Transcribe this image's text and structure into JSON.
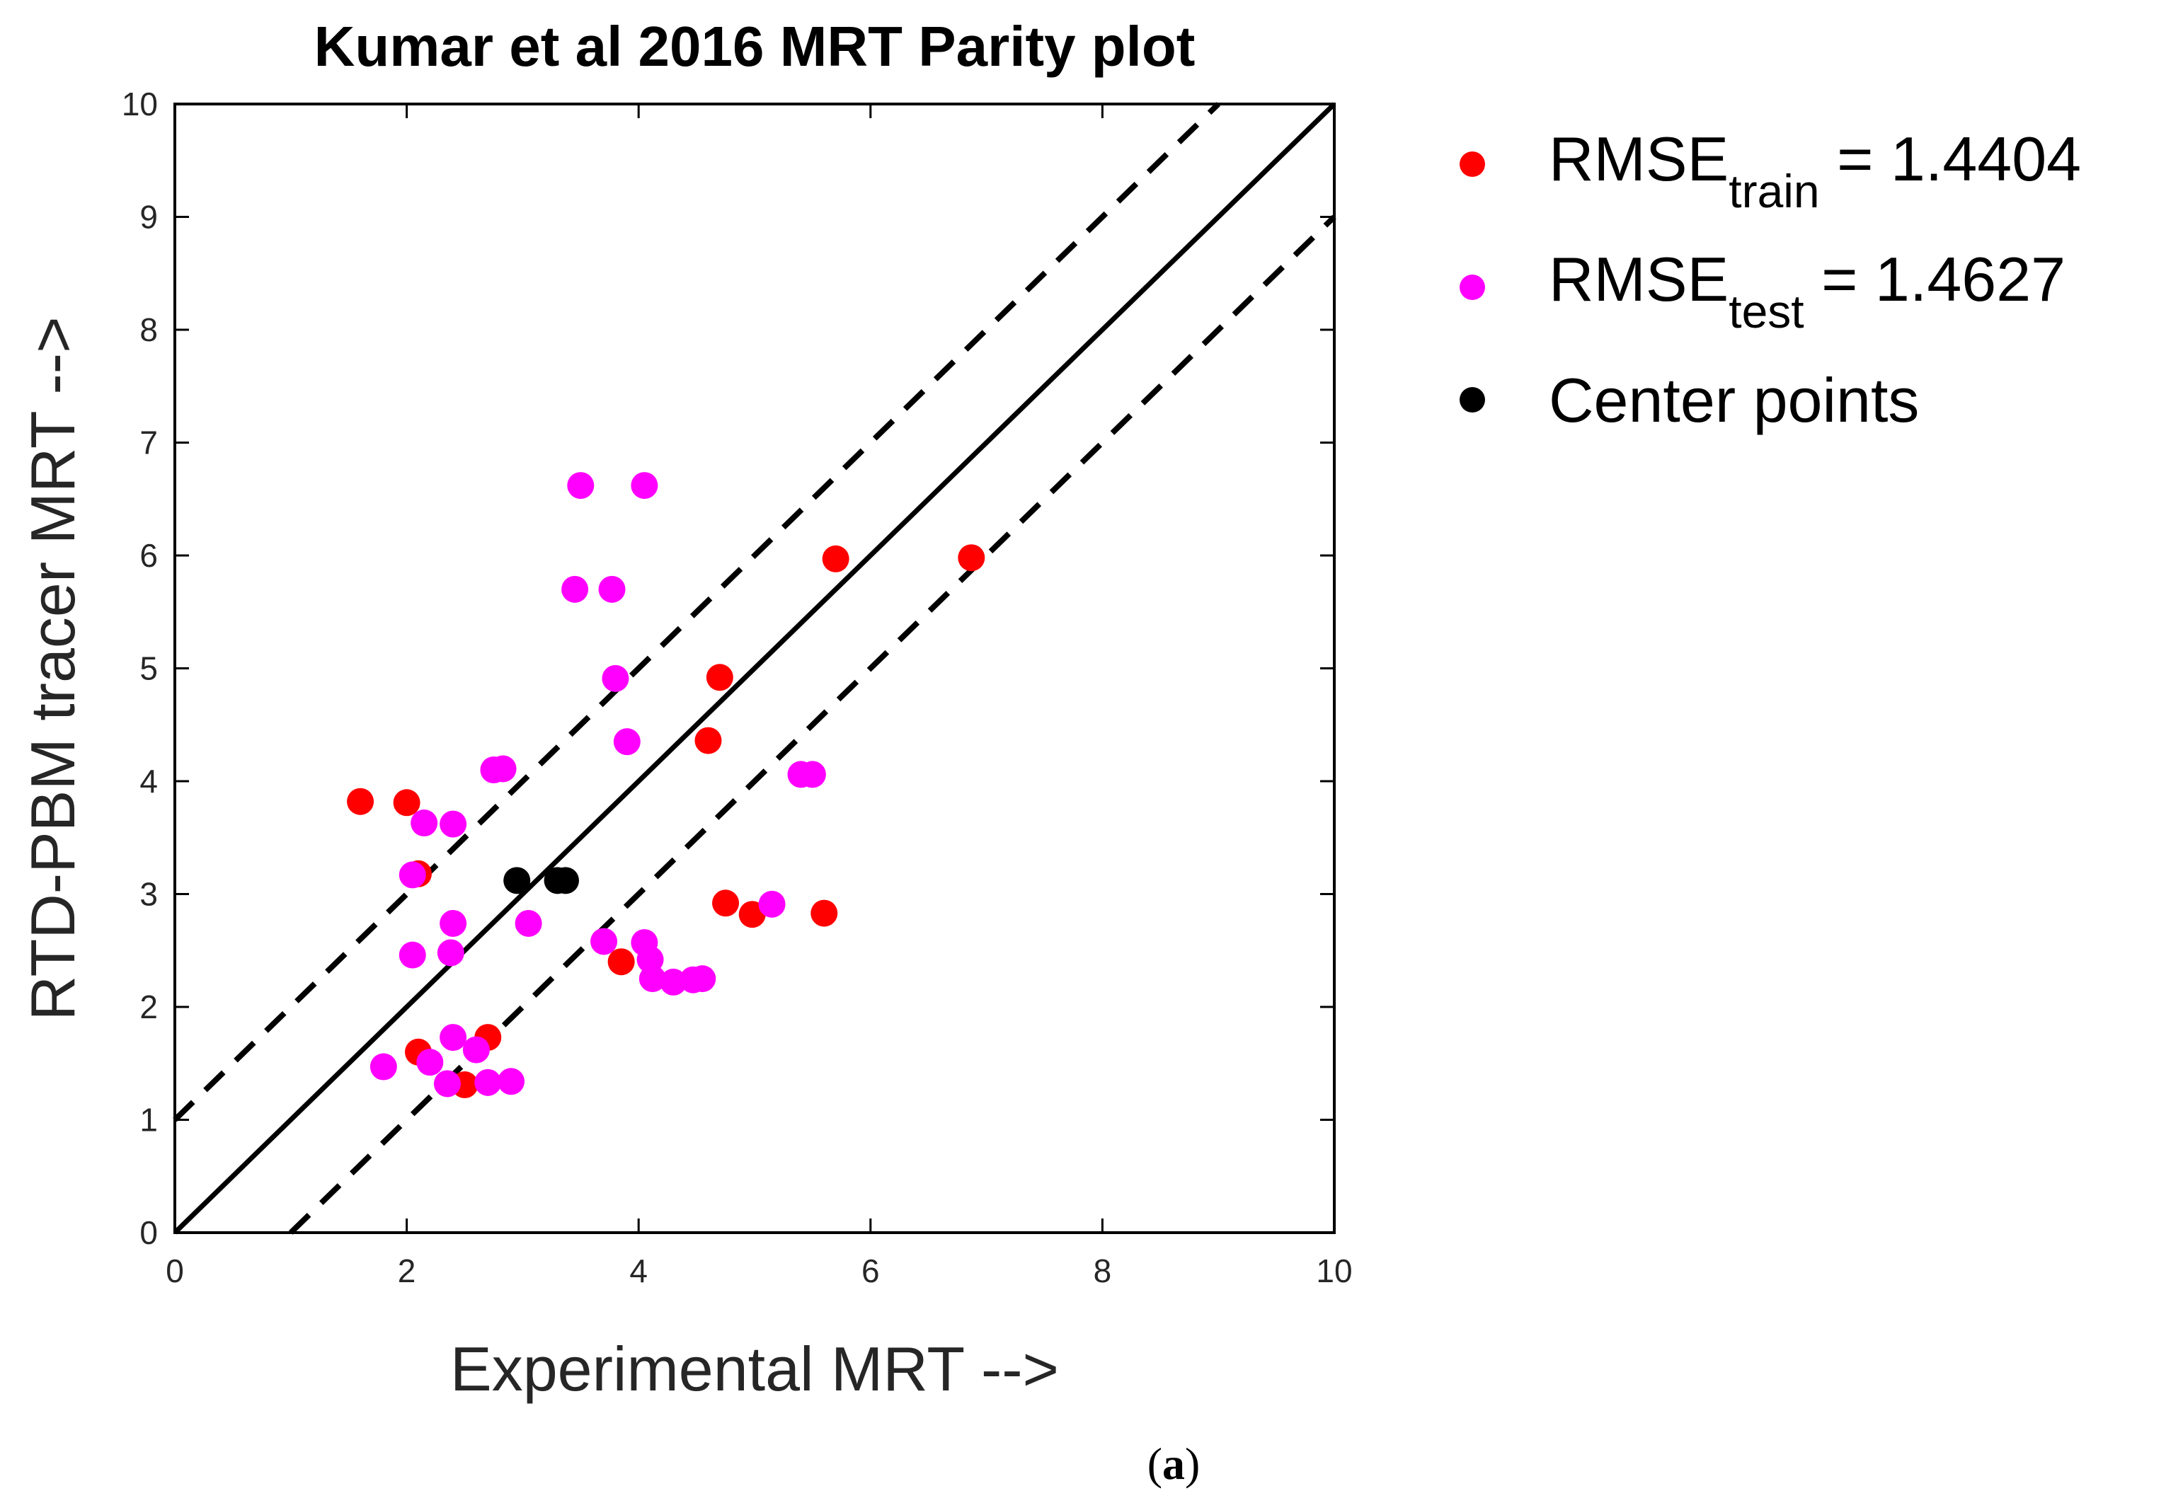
{
  "chart_data": {
    "type": "scatter",
    "title": "Kumar et al 2016 MRT Parity plot",
    "xlabel": "Experimental MRT -->",
    "ylabel": "RTD-PBM tracer MRT -->",
    "xlim": [
      0,
      10
    ],
    "ylim": [
      0,
      10
    ],
    "xticks": [
      "0",
      "2",
      "4",
      "6",
      "8",
      "10"
    ],
    "yticks": [
      "0",
      "1",
      "2",
      "3",
      "4",
      "5",
      "6",
      "7",
      "8",
      "9",
      "10"
    ],
    "grid": false,
    "legend_position": "outside-right",
    "reference_lines": [
      {
        "name": "parity",
        "style": "solid",
        "offset": 0
      },
      {
        "name": "upper-bound",
        "style": "dashed",
        "offset": 1
      },
      {
        "name": "lower-bound",
        "style": "dashed",
        "offset": -1
      }
    ],
    "series": [
      {
        "name": "train",
        "legend_base": "RMSE",
        "legend_sub": "train",
        "legend_value": " = 1.4404",
        "color": "#ff0000",
        "points": [
          [
            1.6,
            3.82
          ],
          [
            2.0,
            3.81
          ],
          [
            2.1,
            3.18
          ],
          [
            2.1,
            1.6
          ],
          [
            2.5,
            1.31
          ],
          [
            2.7,
            1.73
          ],
          [
            3.85,
            2.4
          ],
          [
            4.6,
            4.36
          ],
          [
            4.7,
            4.92
          ],
          [
            4.75,
            2.92
          ],
          [
            4.98,
            2.82
          ],
          [
            5.6,
            2.83
          ],
          [
            5.7,
            5.97
          ],
          [
            6.87,
            5.98
          ]
        ]
      },
      {
        "name": "test",
        "legend_base": "RMSE",
        "legend_sub": "test",
        "legend_value": " = 1.4627",
        "color": "#ff00ff",
        "points": [
          [
            1.8,
            1.47
          ],
          [
            2.05,
            3.17
          ],
          [
            2.05,
            2.46
          ],
          [
            2.15,
            3.63
          ],
          [
            2.2,
            1.51
          ],
          [
            2.35,
            1.32
          ],
          [
            2.38,
            2.48
          ],
          [
            2.4,
            3.62
          ],
          [
            2.4,
            2.74
          ],
          [
            2.4,
            1.73
          ],
          [
            2.6,
            1.62
          ],
          [
            2.7,
            1.33
          ],
          [
            2.75,
            4.1
          ],
          [
            2.83,
            4.11
          ],
          [
            2.9,
            1.34
          ],
          [
            3.05,
            2.74
          ],
          [
            3.45,
            5.7
          ],
          [
            3.5,
            6.62
          ],
          [
            3.7,
            2.58
          ],
          [
            3.77,
            5.7
          ],
          [
            3.8,
            4.91
          ],
          [
            3.9,
            4.35
          ],
          [
            4.05,
            6.62
          ],
          [
            4.05,
            2.57
          ],
          [
            4.1,
            2.42
          ],
          [
            4.12,
            2.25
          ],
          [
            4.3,
            2.22
          ],
          [
            4.47,
            2.24
          ],
          [
            4.55,
            2.25
          ],
          [
            5.15,
            2.91
          ],
          [
            5.4,
            4.06
          ],
          [
            5.5,
            4.06
          ]
        ]
      },
      {
        "name": "center",
        "legend_label": "Center points",
        "color": "#000000",
        "points": [
          [
            2.95,
            3.12
          ],
          [
            3.3,
            3.12
          ],
          [
            3.37,
            3.12
          ]
        ]
      }
    ]
  },
  "caption": {
    "open": "(",
    "label": "a",
    "close": ")"
  }
}
